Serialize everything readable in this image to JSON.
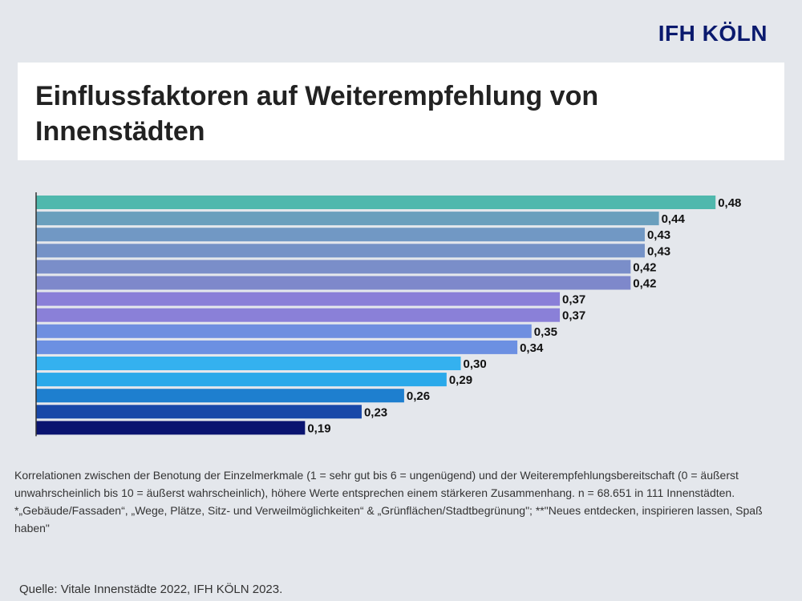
{
  "logo": {
    "text": "IFH KÖLN",
    "color": "#0a1a6e"
  },
  "title": "Einflussfaktoren auf Weiterempfehlung von Innenstädten",
  "chart_data": {
    "type": "bar",
    "orientation": "horizontal",
    "title": "",
    "xlabel": "",
    "ylabel": "",
    "xlim": [
      0,
      0.5
    ],
    "grid": false,
    "values": [
      0.48,
      0.44,
      0.43,
      0.43,
      0.42,
      0.42,
      0.37,
      0.37,
      0.35,
      0.34,
      0.3,
      0.29,
      0.26,
      0.23,
      0.19
    ],
    "value_labels": [
      "0,48",
      "0,44",
      "0,43",
      "0,43",
      "0,42",
      "0,42",
      "0,37",
      "0,37",
      "0,35",
      "0,34",
      "0,30",
      "0,29",
      "0,26",
      "0,23",
      "0,19"
    ],
    "colors": [
      "#4fb8ad",
      "#6a9fbd",
      "#7198c4",
      "#7592c7",
      "#7a8ec9",
      "#7e88cb",
      "#8a7fd8",
      "#8a80d8",
      "#6f8fe0",
      "#6c90e2",
      "#34b1ef",
      "#2aa9ea",
      "#1e7fcf",
      "#1848a8",
      "#0a1470"
    ]
  },
  "notes": [
    "Korrelationen zwischen der Benotung der Einzelmerkmale (1 = sehr gut bis 6 = ungenügend) und der Weiterempfehlungsbereitschaft (0 = äußerst unwahrscheinlich bis 10 = äußerst wahrscheinlich), höhere Werte entsprechen einem stärkeren Zusammenhang. n = 68.651 in 111 Innenstädten.",
    "*„Gebäude/Fassaden“, „Wege, Plätze, Sitz- und Verweilmöglichkeiten“ & „Grünflächen/Stadtbegrünung\"; **\"Neues entdecken, inspirieren lassen, Spaß haben\""
  ],
  "source": "Quelle: Vitale Innenstädte 2022, IFH KÖLN 2023."
}
